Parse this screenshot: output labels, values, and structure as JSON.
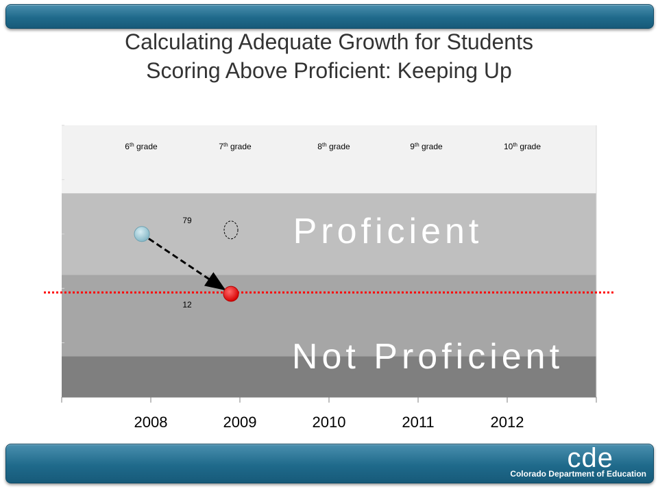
{
  "title": {
    "line1": "Calculating Adequate Growth for Students",
    "line2": "Scoring Above Proficient: Keeping Up"
  },
  "footer": {
    "logo_text": "cde",
    "org_name": "Colorado Department of Education"
  },
  "colors": {
    "header_bar": "#1f6a8b",
    "band_top": "#f2f2f2",
    "band_proficient": "#bfbfbf",
    "band_not_proficient": "#a6a6a6",
    "band_bottom": "#7f7f7f",
    "start_point": "#9ac7d4",
    "end_point": "#ff0000",
    "cut_line": "#ff0000"
  },
  "chart_data": {
    "type": "scatter",
    "x_categories": [
      "2008",
      "2009",
      "2010",
      "2011",
      "2012"
    ],
    "grade_labels": [
      {
        "base": "6",
        "sup": "th",
        "rest": " grade"
      },
      {
        "base": "7",
        "sup": "th",
        "rest": " grade"
      },
      {
        "base": "8",
        "sup": "th",
        "rest": " grade"
      },
      {
        "base": "9",
        "sup": "th",
        "rest": " grade"
      },
      {
        "base": "10",
        "sup": "th",
        "rest": " grade"
      }
    ],
    "bands": [
      {
        "label": "",
        "from": 75,
        "to": 100
      },
      {
        "label": "Proficient",
        "from": 45,
        "to": 75
      },
      {
        "label": "Not Proficient",
        "from": 15,
        "to": 45
      },
      {
        "label": "",
        "from": 0,
        "to": 15
      }
    ],
    "ylim": [
      0,
      100
    ],
    "points": [
      {
        "name": "start",
        "x": 2007.9,
        "y": 60
      },
      {
        "name": "end",
        "x": 2008.9,
        "y": 38
      }
    ],
    "target_circle": {
      "x": 2008.9,
      "y": 61
    },
    "cut_line_y": 39,
    "data_labels": [
      {
        "text": "79",
        "x": 2008.4,
        "y": 65
      },
      {
        "text": "12",
        "x": 2008.4,
        "y": 34
      }
    ],
    "grid": true
  }
}
